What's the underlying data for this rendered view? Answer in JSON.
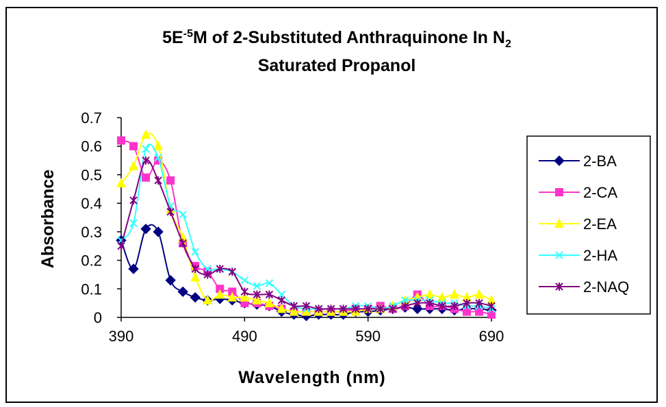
{
  "chart_data": {
    "type": "line",
    "title": {
      "part1": "5E",
      "sup": "-5",
      "part2": "M of 2-Substituted Anthraquinone In N",
      "sub": "2",
      "line2": "Saturated Propanol"
    },
    "xlabel": "Wavelength (nm)",
    "ylabel": "Absorbance",
    "xlim": [
      390,
      690
    ],
    "ylim": [
      0,
      0.7
    ],
    "xticks": [
      "390",
      "490",
      "590",
      "690"
    ],
    "yticks": [
      "0",
      "0.1",
      "0.2",
      "0.3",
      "0.4",
      "0.5",
      "0.6",
      "0.7"
    ],
    "grid": false,
    "legend_position": "right",
    "series": [
      {
        "name": "2-BA",
        "color": "#000080",
        "marker": "diamond",
        "x": [
          390,
          400,
          410,
          420,
          430,
          440,
          450,
          460,
          470,
          480,
          490,
          500,
          510,
          520,
          530,
          540,
          550,
          560,
          570,
          580,
          590,
          600,
          610,
          620,
          630,
          640,
          650,
          660,
          670,
          680,
          690
        ],
        "y": [
          0.27,
          0.17,
          0.31,
          0.3,
          0.13,
          0.09,
          0.07,
          0.06,
          0.065,
          0.06,
          0.05,
          0.045,
          0.04,
          0.02,
          0.01,
          0.005,
          0.01,
          0.01,
          0.01,
          0.02,
          0.02,
          0.025,
          0.03,
          0.035,
          0.03,
          0.03,
          0.03,
          0.025,
          0.03,
          0.03,
          0.025
        ]
      },
      {
        "name": "2-CA",
        "color": "#ff33cc",
        "marker": "square",
        "x": [
          390,
          400,
          410,
          420,
          430,
          440,
          450,
          460,
          470,
          480,
          490,
          500,
          510,
          520,
          530,
          540,
          550,
          560,
          570,
          580,
          590,
          600,
          610,
          620,
          630,
          640,
          650,
          660,
          670,
          680,
          690
        ],
        "y": [
          0.62,
          0.6,
          0.49,
          0.55,
          0.48,
          0.26,
          0.18,
          0.16,
          0.1,
          0.09,
          0.05,
          0.05,
          0.04,
          0.03,
          0.02,
          0.02,
          0.02,
          0.02,
          0.02,
          0.03,
          0.03,
          0.04,
          0.03,
          0.04,
          0.08,
          0.04,
          0.04,
          0.03,
          0.02,
          0.02,
          0.01
        ]
      },
      {
        "name": "2-EA",
        "color": "#ffff00",
        "marker": "triangle",
        "x": [
          390,
          400,
          410,
          420,
          430,
          440,
          450,
          460,
          470,
          480,
          490,
          500,
          510,
          520,
          530,
          540,
          550,
          560,
          570,
          580,
          590,
          600,
          610,
          620,
          630,
          640,
          650,
          660,
          670,
          680,
          690
        ],
        "y": [
          0.47,
          0.53,
          0.64,
          0.6,
          0.38,
          0.28,
          0.14,
          0.06,
          0.08,
          0.07,
          0.07,
          0.06,
          0.05,
          0.03,
          0.02,
          0.02,
          0.02,
          0.02,
          0.02,
          0.02,
          0.03,
          0.03,
          0.04,
          0.06,
          0.07,
          0.08,
          0.07,
          0.08,
          0.07,
          0.08,
          0.06
        ]
      },
      {
        "name": "2-HA",
        "color": "#33ffff",
        "marker": "x",
        "x": [
          390,
          400,
          410,
          420,
          430,
          440,
          450,
          460,
          470,
          480,
          490,
          500,
          510,
          520,
          530,
          540,
          550,
          560,
          570,
          580,
          590,
          600,
          610,
          620,
          630,
          640,
          650,
          660,
          670,
          680,
          690
        ],
        "y": [
          0.27,
          0.33,
          0.59,
          0.56,
          0.39,
          0.36,
          0.23,
          0.17,
          0.17,
          0.16,
          0.13,
          0.11,
          0.12,
          0.08,
          0.04,
          0.03,
          0.03,
          0.03,
          0.03,
          0.04,
          0.04,
          0.03,
          0.04,
          0.06,
          0.06,
          0.06,
          0.05,
          0.05,
          0.04,
          0.04,
          0.03
        ]
      },
      {
        "name": "2-NAQ",
        "color": "#800080",
        "marker": "asterisk",
        "x": [
          390,
          400,
          410,
          420,
          430,
          440,
          450,
          460,
          470,
          480,
          490,
          500,
          510,
          520,
          530,
          540,
          550,
          560,
          570,
          580,
          590,
          600,
          610,
          620,
          630,
          640,
          650,
          660,
          670,
          680,
          690
        ],
        "y": [
          0.25,
          0.41,
          0.55,
          0.48,
          0.37,
          0.26,
          0.17,
          0.15,
          0.17,
          0.16,
          0.09,
          0.08,
          0.08,
          0.06,
          0.04,
          0.04,
          0.03,
          0.03,
          0.03,
          0.03,
          0.03,
          0.03,
          0.03,
          0.04,
          0.05,
          0.05,
          0.04,
          0.04,
          0.05,
          0.05,
          0.04
        ]
      }
    ]
  }
}
